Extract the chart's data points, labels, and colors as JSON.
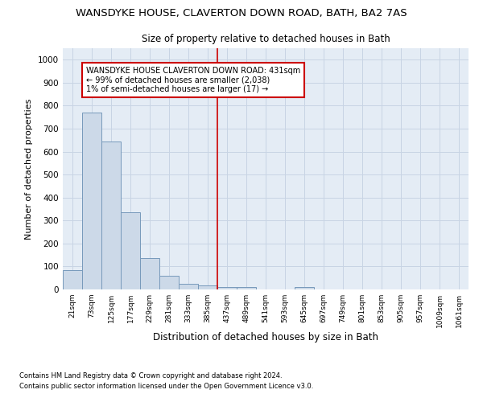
{
  "title_line1": "WANSDYKE HOUSE, CLAVERTON DOWN ROAD, BATH, BA2 7AS",
  "title_line2": "Size of property relative to detached houses in Bath",
  "xlabel": "Distribution of detached houses by size in Bath",
  "ylabel": "Number of detached properties",
  "bar_labels": [
    "21sqm",
    "73sqm",
    "125sqm",
    "177sqm",
    "229sqm",
    "281sqm",
    "333sqm",
    "385sqm",
    "437sqm",
    "489sqm",
    "541sqm",
    "593sqm",
    "645sqm",
    "697sqm",
    "749sqm",
    "801sqm",
    "853sqm",
    "905sqm",
    "957sqm",
    "1009sqm",
    "1061sqm"
  ],
  "bar_values": [
    85,
    770,
    645,
    335,
    135,
    60,
    25,
    18,
    10,
    10,
    0,
    0,
    12,
    0,
    0,
    0,
    0,
    0,
    0,
    0,
    0
  ],
  "bar_color": "#ccd9e8",
  "bar_edge_color": "#7799bb",
  "grid_color": "#c8d4e4",
  "background_color": "#e4ecf5",
  "vline_color": "#cc0000",
  "annotation_text": "WANSDYKE HOUSE CLAVERTON DOWN ROAD: 431sqm\n← 99% of detached houses are smaller (2,038)\n1% of semi-detached houses are larger (17) →",
  "annotation_box_color": "#ffffff",
  "annotation_box_edge": "#cc0000",
  "ylim": [
    0,
    1050
  ],
  "yticks": [
    0,
    100,
    200,
    300,
    400,
    500,
    600,
    700,
    800,
    900,
    1000
  ],
  "footnote1": "Contains HM Land Registry data © Crown copyright and database right 2024.",
  "footnote2": "Contains public sector information licensed under the Open Government Licence v3.0."
}
